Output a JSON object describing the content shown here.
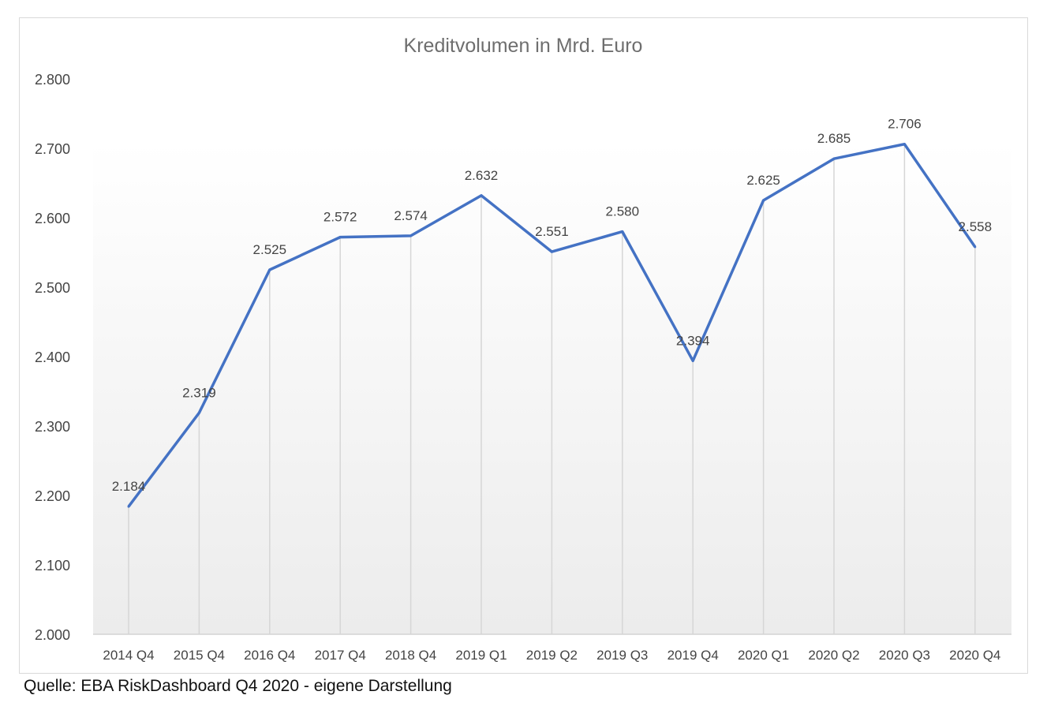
{
  "chart_data": {
    "type": "line",
    "title": "Kreditvolumen  in Mrd. Euro",
    "xlabel": "",
    "ylabel": "",
    "categories": [
      "2014  Q4",
      "2015  Q4",
      "2016  Q4",
      "2017  Q4",
      "2018  Q4",
      "2019  Q1",
      "2019  Q2",
      "2019  Q3",
      "2019  Q4",
      "2020  Q1",
      "2020  Q2",
      "2020  Q3",
      "2020  Q4"
    ],
    "series": [
      {
        "name": "Kreditvolumen",
        "values": [
          2184,
          2319,
          2525,
          2572,
          2574,
          2632,
          2551,
          2580,
          2394,
          2625,
          2685,
          2706,
          2558
        ],
        "labels": [
          "2.184",
          "2.319",
          "2.525",
          "2.572",
          "2.574",
          "2.632",
          "2.551",
          "2.580",
          "2.394",
          "2.625",
          "2.685",
          "2.706",
          "2.558"
        ]
      }
    ],
    "ylim": [
      2000,
      2800
    ],
    "yticks": [
      2000,
      2100,
      2200,
      2300,
      2400,
      2500,
      2600,
      2700,
      2800
    ],
    "ytick_labels": [
      "2.000",
      "2.100",
      "2.200",
      "2.300",
      "2.400",
      "2.500",
      "2.600",
      "2.700",
      "2.800"
    ],
    "grid": false,
    "line_color": "#4472c4"
  },
  "source": "Quelle: EBA RiskDashboard Q4 2020 - eigene Darstellung"
}
